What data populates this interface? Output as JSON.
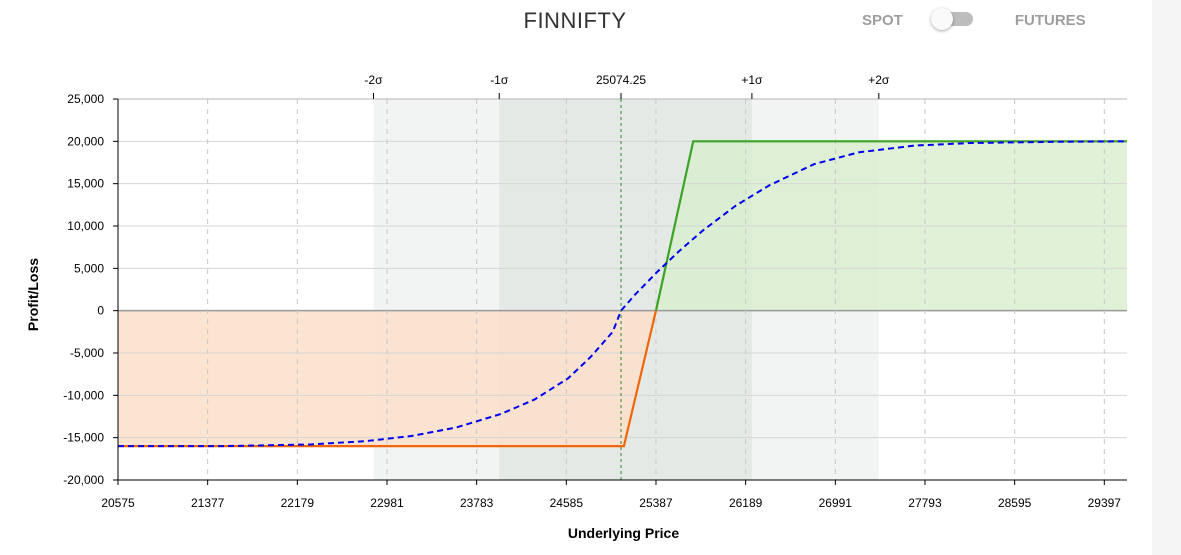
{
  "header": {
    "title": "FINNIFTY",
    "spot_label": "SPOT",
    "futures_label": "FUTURES",
    "toggle_on": false
  },
  "colors": {
    "profit_line": "#3ba325",
    "profit_fill": "#d8edcd",
    "loss_line": "#f2650a",
    "loss_fill": "#fbdfc9",
    "expected_line": "#0000ee",
    "sigma1_band": "#e4e9e6",
    "sigma2_band": "#f2f4f3",
    "spot_line": "#2e8b2e"
  },
  "chart_data": {
    "type": "line",
    "title": "FINNIFTY",
    "xlabel": "Underlying Price",
    "ylabel": "Profit/Loss",
    "xlim": [
      20575,
      29600
    ],
    "ylim": [
      -20000,
      25000
    ],
    "x_ticks": [
      20575,
      21377,
      22179,
      22981,
      23783,
      24585,
      25387,
      26189,
      26991,
      27793,
      28595,
      29397
    ],
    "y_ticks": [
      -20000,
      -15000,
      -10000,
      -5000,
      0,
      5000,
      10000,
      15000,
      20000,
      25000
    ],
    "spot": {
      "value": 25074.25,
      "label": "25074.25"
    },
    "sigma_markers": [
      {
        "label": "-2σ",
        "value": 22860
      },
      {
        "label": "-1σ",
        "value": 23985
      },
      {
        "label": "+1σ",
        "value": 26245
      },
      {
        "label": "+2σ",
        "value": 27380
      }
    ],
    "series": [
      {
        "style": "payoff-at-expiry",
        "x": [
          20575,
          25100,
          25387,
          25720,
          29600
        ],
        "y": [
          -16000,
          -16000,
          0,
          20000,
          20000
        ]
      },
      {
        "style": "dashed-today",
        "x": [
          20575,
          21500,
          22300,
          22800,
          23200,
          23600,
          24000,
          24300,
          24600,
          24800,
          25000,
          25074.25,
          25200,
          25400,
          25600,
          25800,
          26100,
          26400,
          26800,
          27200,
          27700,
          28200,
          29000,
          29600
        ],
        "y": [
          -16000,
          -16000,
          -15800,
          -15400,
          -14800,
          -13800,
          -12200,
          -10500,
          -8000,
          -5500,
          -2500,
          0,
          1900,
          4600,
          7100,
          9400,
          12400,
          14800,
          17300,
          18700,
          19500,
          19800,
          19950,
          20000
        ]
      }
    ]
  }
}
